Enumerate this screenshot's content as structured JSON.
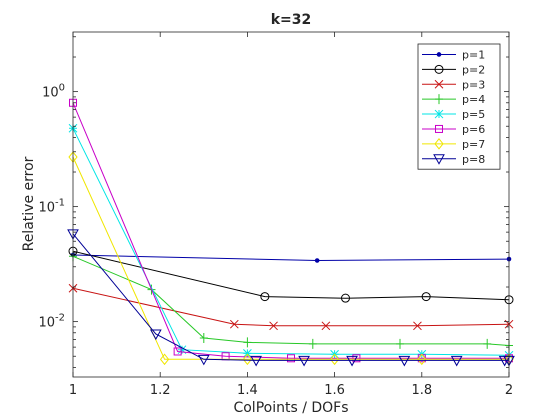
{
  "chart_data": {
    "type": "line",
    "title": "k=32",
    "xlabel": "ColPoints / DOFs",
    "ylabel": "Relative error",
    "xlim": [
      1,
      2
    ],
    "ylim": [
      0.0033,
      3.3
    ],
    "yscale": "log",
    "grid": false,
    "legend_position": "top-right",
    "xticks": [
      1,
      1.2,
      1.4,
      1.6,
      1.8,
      2
    ],
    "xtick_labels": [
      "1",
      "1.2",
      "1.4",
      "1.6",
      "1.8",
      "2"
    ],
    "yticks": [
      0.01,
      0.1,
      1
    ],
    "ytick_labels": [
      {
        "base": "10",
        "exp": "-2"
      },
      {
        "base": "10",
        "exp": "-1"
      },
      {
        "base": "10",
        "exp": "0"
      }
    ],
    "series": [
      {
        "name": "p=1",
        "color": "#0000a8",
        "marker": "dot",
        "x": [
          1,
          1.56,
          2
        ],
        "y": [
          0.038,
          0.034,
          0.035
        ]
      },
      {
        "name": "p=2",
        "color": "#000000",
        "marker": "circle",
        "x": [
          1,
          1.44,
          1.625,
          1.81,
          2
        ],
        "y": [
          0.041,
          0.0165,
          0.016,
          0.0165,
          0.0155
        ]
      },
      {
        "name": "p=3",
        "color": "#c81414",
        "marker": "x",
        "x": [
          1,
          1.37,
          1.46,
          1.58,
          1.79,
          2
        ],
        "y": [
          0.0195,
          0.0095,
          0.0092,
          0.0092,
          0.0092,
          0.0095
        ]
      },
      {
        "name": "p=4",
        "color": "#28c828",
        "marker": "plus",
        "x": [
          1,
          1.18,
          1.3,
          1.4,
          1.55,
          1.75,
          1.95,
          2
        ],
        "y": [
          0.037,
          0.019,
          0.0072,
          0.0066,
          0.0064,
          0.0064,
          0.0064,
          0.0062
        ]
      },
      {
        "name": "p=5",
        "color": "#00e5e5",
        "marker": "star",
        "x": [
          1,
          1.25,
          1.4,
          1.6,
          1.8,
          2
        ],
        "y": [
          0.48,
          0.0057,
          0.0053,
          0.0052,
          0.0052,
          0.0051
        ]
      },
      {
        "name": "p=6",
        "color": "#c800c8",
        "marker": "square",
        "x": [
          1,
          1.24,
          1.35,
          1.5,
          1.65,
          1.8,
          2
        ],
        "y": [
          0.8,
          0.0055,
          0.005,
          0.0048,
          0.0048,
          0.0048,
          0.0048
        ]
      },
      {
        "name": "p=7",
        "color": "#f0e600",
        "marker": "diamond",
        "x": [
          1,
          1.21,
          1.4,
          1.6,
          1.8,
          2
        ],
        "y": [
          0.27,
          0.0047,
          0.0047,
          0.0047,
          0.0047,
          0.0047
        ]
      },
      {
        "name": "p=8",
        "color": "#000096",
        "marker": "triangle-down",
        "x": [
          1,
          1.19,
          1.3,
          1.42,
          1.53,
          1.64,
          1.76,
          1.88,
          1.99,
          2
        ],
        "y": [
          0.058,
          0.0078,
          0.0047,
          0.0046,
          0.0046,
          0.0046,
          0.0046,
          0.0046,
          0.0046,
          0.0046
        ]
      }
    ]
  }
}
